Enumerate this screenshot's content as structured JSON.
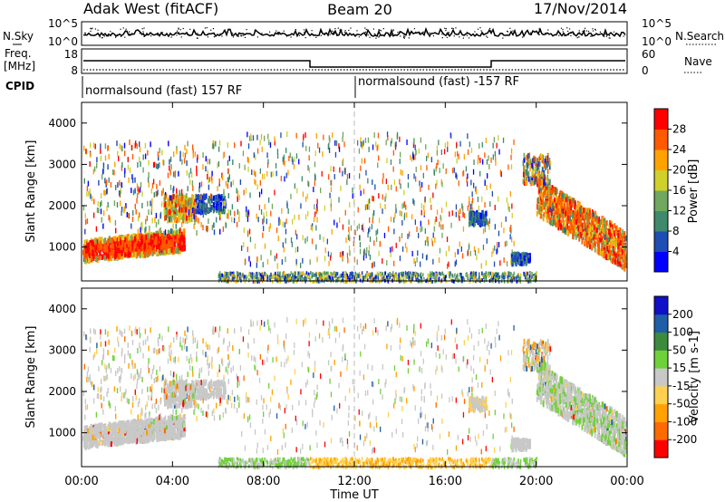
{
  "header": {
    "title_left": "Adak West (fitACF)",
    "title_center": "Beam 20",
    "title_right": "17/Nov/2014"
  },
  "noise_panel": {
    "left_label": "N.Sky",
    "right_label": "N.Search",
    "left_ticks": [
      "10^5",
      "10^0"
    ],
    "right_ticks": [
      "10^5",
      "10^0"
    ]
  },
  "freq_panel": {
    "left_label_line1": "Freq.",
    "left_label_line2": "[MHz]",
    "right_label": "Nave",
    "left_ticks": [
      "18",
      "8"
    ],
    "right_ticks": [
      "60",
      "0"
    ],
    "cpid_label": "CPID",
    "cpid_left": "normalsound (fast) 157 RF",
    "cpid_right": "normalsound (fast) -157 RF"
  },
  "x_axis": {
    "label": "Time UT",
    "ticks": [
      "00:00",
      "04:00",
      "08:00",
      "12:00",
      "16:00",
      "20:00",
      "00:00"
    ]
  },
  "colors": {
    "power": [
      "#0000ff",
      "#1e4db4",
      "#3f8a6c",
      "#6fa85e",
      "#cfd02a",
      "#ffa200",
      "#ff5a00",
      "#ff0000"
    ],
    "velocity": [
      "#ff0000",
      "#ff6a00",
      "#ffa100",
      "#ffd050",
      "#c8c8c8",
      "#6fd13a",
      "#3d8a3d",
      "#1e5fa8",
      "#1010c8"
    ]
  },
  "chart_data": [
    {
      "type": "heatmap",
      "title": "",
      "xlabel": "Time UT",
      "ylabel": "Slant Range [km]",
      "x_ticks": [
        "00:00",
        "04:00",
        "08:00",
        "12:00",
        "16:00",
        "20:00",
        "00:00"
      ],
      "y_ticks": [
        "1000",
        "2000",
        "3000",
        "4000"
      ],
      "ylim": [
        180,
        4500
      ],
      "colorbar_label": "Power [dB]",
      "colorbar_ticks": [
        "4",
        "8",
        "12",
        "16",
        "20",
        "24",
        "28"
      ],
      "colorbar_range": [
        0,
        30
      ]
    },
    {
      "type": "heatmap",
      "title": "",
      "xlabel": "Time UT",
      "ylabel": "Slant Range [km]",
      "x_ticks": [
        "00:00",
        "04:00",
        "08:00",
        "12:00",
        "16:00",
        "20:00",
        "00:00"
      ],
      "y_ticks": [
        "1000",
        "2000",
        "3000",
        "4000"
      ],
      "ylim": [
        180,
        4500
      ],
      "colorbar_label": "Velocity [m s-1]",
      "colorbar_ticks": [
        "200",
        "100",
        "50",
        "15",
        "-15",
        "-50",
        "-100",
        "-200"
      ],
      "colorbar_range": [
        -250,
        250
      ]
    }
  ]
}
